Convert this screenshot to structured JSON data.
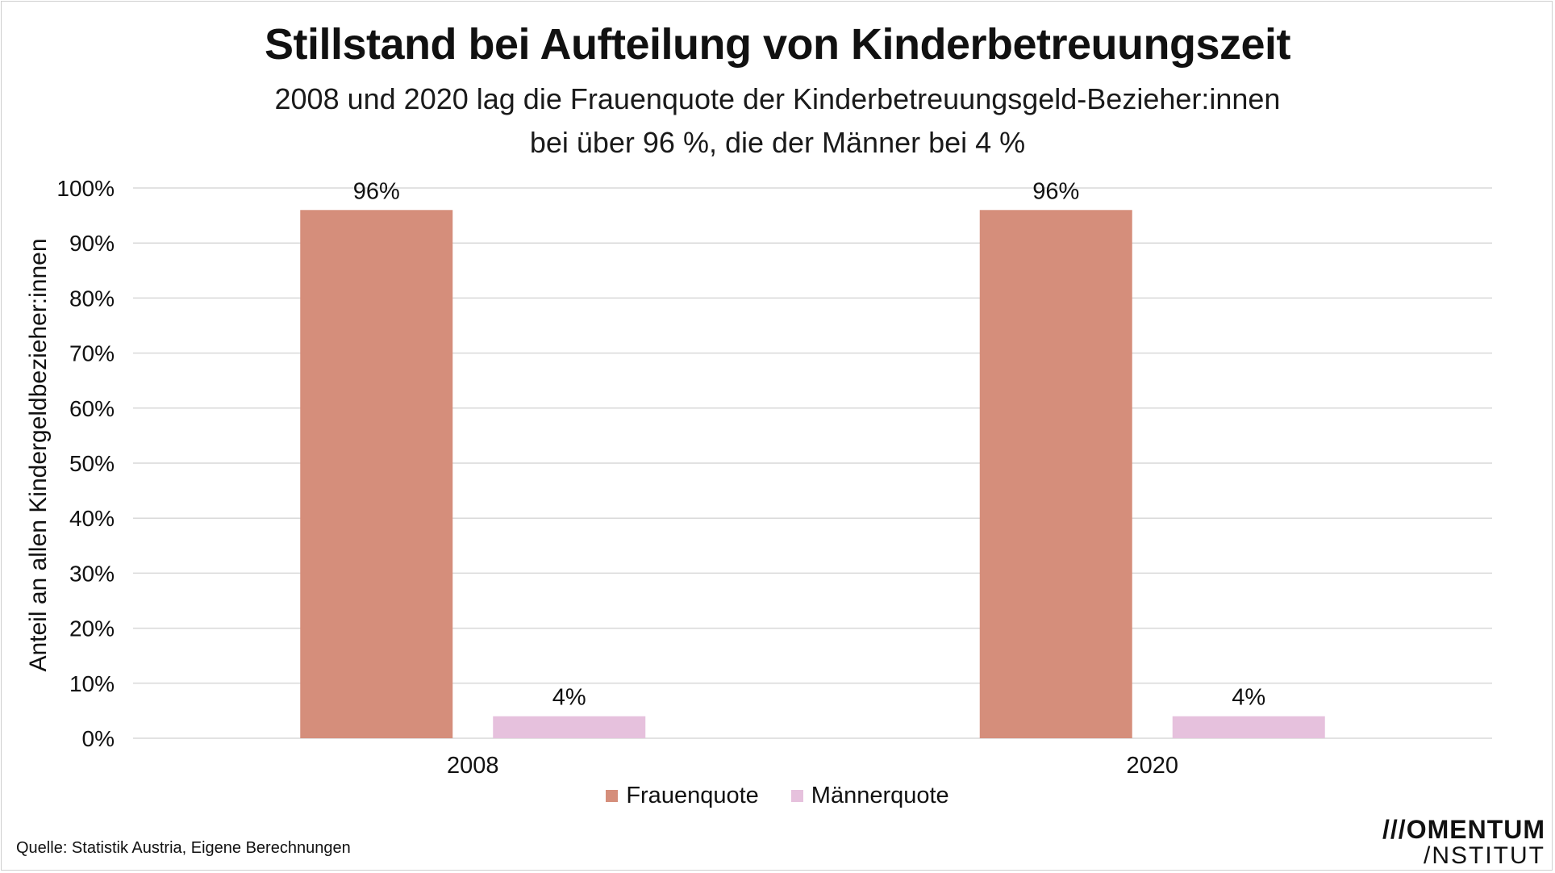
{
  "title": "Stillstand bei Aufteilung von Kinderbetreuungszeit",
  "subtitle_line1": "2008 und 2020 lag die Frauenquote der Kinderbetreuungsgeld-Bezieher:innen",
  "subtitle_line2": "bei über 96 %, die der Männer bei 4  %",
  "source": "Quelle: Statistik Austria, Eigene Berechnungen",
  "logo": {
    "line1": "///OMENTUM",
    "line2": "/NSTITUT"
  },
  "colors": {
    "frauen": "#d58e7b",
    "maenner": "#e6c1dd",
    "grid": "#d9d9d9"
  },
  "chart_data": {
    "type": "bar",
    "categories": [
      "2008",
      "2020"
    ],
    "series": [
      {
        "name": "Frauenquote",
        "values": [
          96,
          96
        ],
        "labels": [
          "96%",
          "96%"
        ]
      },
      {
        "name": "Männerquote",
        "values": [
          4,
          4
        ],
        "labels": [
          "4%",
          "4%"
        ]
      }
    ],
    "ylabel": "Anteil an allen Kindergeldbezieher:innen",
    "ylim": [
      0,
      100
    ],
    "yticks": [
      0,
      10,
      20,
      30,
      40,
      50,
      60,
      70,
      80,
      90,
      100
    ],
    "ytick_labels": [
      "0%",
      "10%",
      "20%",
      "30%",
      "40%",
      "50%",
      "60%",
      "70%",
      "80%",
      "90%",
      "100%"
    ],
    "grid": true,
    "legend": "bottom"
  }
}
